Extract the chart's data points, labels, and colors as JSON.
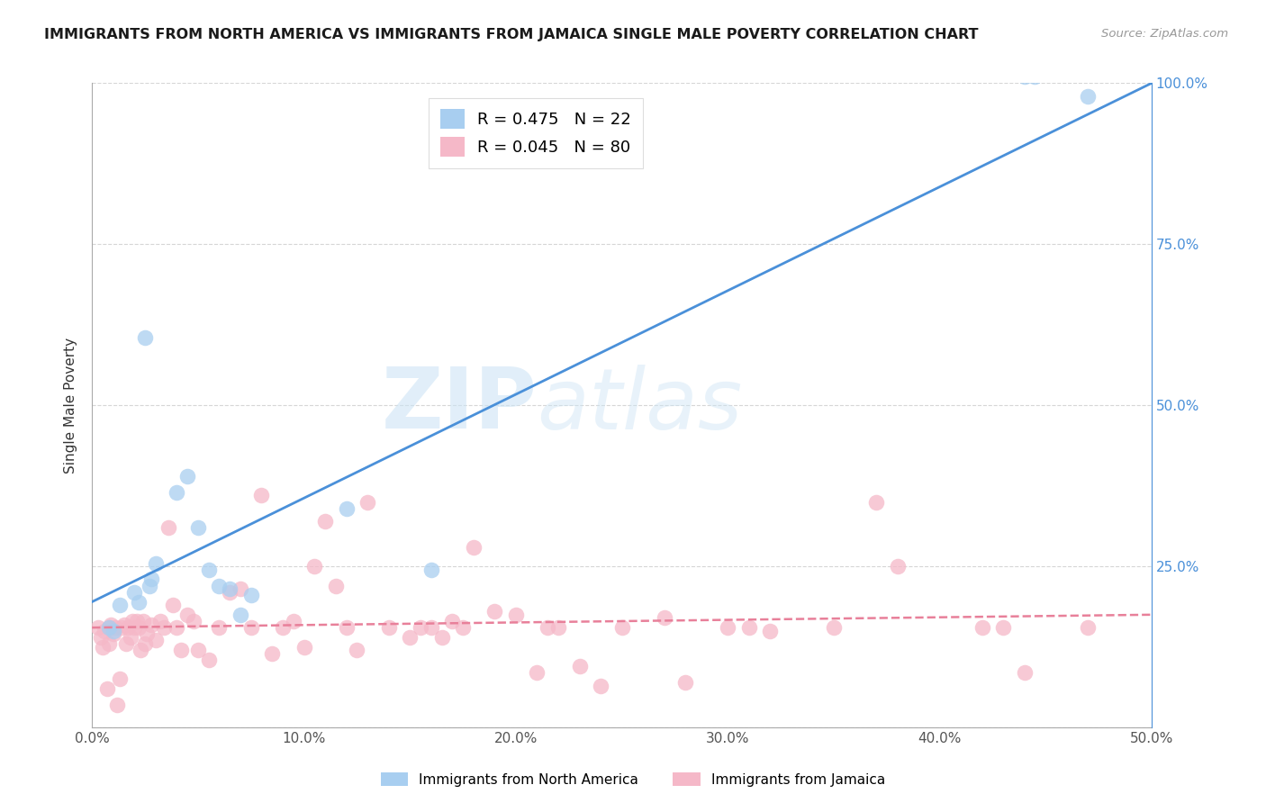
{
  "title": "IMMIGRANTS FROM NORTH AMERICA VS IMMIGRANTS FROM JAMAICA SINGLE MALE POVERTY CORRELATION CHART",
  "source": "Source: ZipAtlas.com",
  "ylabel": "Single Male Poverty",
  "legend_label_blue": "Immigrants from North America",
  "legend_label_pink": "Immigrants from Jamaica",
  "r_blue": 0.475,
  "n_blue": 22,
  "r_pink": 0.045,
  "n_pink": 80,
  "xlim": [
    0,
    0.5
  ],
  "ylim": [
    0,
    1.0
  ],
  "color_blue": "#a8cef0",
  "color_pink": "#f5b8c8",
  "trendline_blue_color": "#4a90d9",
  "trendline_pink_color": "#e8809a",
  "watermark_zip": "ZIP",
  "watermark_atlas": "atlas",
  "blue_trendline_x0": 0.0,
  "blue_trendline_y0": 0.195,
  "blue_trendline_x1": 0.5,
  "blue_trendline_y1": 1.0,
  "pink_trendline_x0": 0.0,
  "pink_trendline_y0": 0.155,
  "pink_trendline_x1": 0.5,
  "pink_trendline_y1": 0.175,
  "blue_x": [
    0.008,
    0.01,
    0.013,
    0.02,
    0.022,
    0.025,
    0.027,
    0.028,
    0.03,
    0.04,
    0.045,
    0.05,
    0.055,
    0.06,
    0.065,
    0.07,
    0.075,
    0.12,
    0.16,
    0.44,
    0.445,
    0.47
  ],
  "blue_y": [
    0.155,
    0.15,
    0.19,
    0.21,
    0.195,
    0.605,
    0.22,
    0.23,
    0.255,
    0.365,
    0.39,
    0.31,
    0.245,
    0.22,
    0.215,
    0.175,
    0.205,
    0.34,
    0.245,
    1.01,
    1.01,
    0.98
  ],
  "pink_x": [
    0.003,
    0.004,
    0.005,
    0.006,
    0.007,
    0.008,
    0.008,
    0.009,
    0.01,
    0.011,
    0.012,
    0.013,
    0.014,
    0.015,
    0.016,
    0.017,
    0.018,
    0.019,
    0.02,
    0.021,
    0.022,
    0.023,
    0.024,
    0.025,
    0.026,
    0.028,
    0.03,
    0.032,
    0.034,
    0.036,
    0.038,
    0.04,
    0.042,
    0.045,
    0.048,
    0.05,
    0.055,
    0.06,
    0.065,
    0.07,
    0.075,
    0.08,
    0.085,
    0.09,
    0.095,
    0.1,
    0.105,
    0.11,
    0.115,
    0.12,
    0.125,
    0.13,
    0.14,
    0.15,
    0.155,
    0.16,
    0.165,
    0.17,
    0.175,
    0.18,
    0.19,
    0.2,
    0.21,
    0.215,
    0.22,
    0.23,
    0.24,
    0.25,
    0.27,
    0.28,
    0.3,
    0.31,
    0.32,
    0.35,
    0.37,
    0.38,
    0.42,
    0.43,
    0.44,
    0.47
  ],
  "pink_y": [
    0.155,
    0.14,
    0.125,
    0.15,
    0.06,
    0.155,
    0.13,
    0.16,
    0.145,
    0.155,
    0.035,
    0.075,
    0.155,
    0.16,
    0.13,
    0.155,
    0.14,
    0.165,
    0.155,
    0.165,
    0.155,
    0.12,
    0.165,
    0.13,
    0.145,
    0.16,
    0.135,
    0.165,
    0.155,
    0.31,
    0.19,
    0.155,
    0.12,
    0.175,
    0.165,
    0.12,
    0.105,
    0.155,
    0.21,
    0.215,
    0.155,
    0.36,
    0.115,
    0.155,
    0.165,
    0.125,
    0.25,
    0.32,
    0.22,
    0.155,
    0.12,
    0.35,
    0.155,
    0.14,
    0.155,
    0.155,
    0.14,
    0.165,
    0.155,
    0.28,
    0.18,
    0.175,
    0.085,
    0.155,
    0.155,
    0.095,
    0.065,
    0.155,
    0.17,
    0.07,
    0.155,
    0.155,
    0.15,
    0.155,
    0.35,
    0.25,
    0.155,
    0.155,
    0.085,
    0.155
  ]
}
